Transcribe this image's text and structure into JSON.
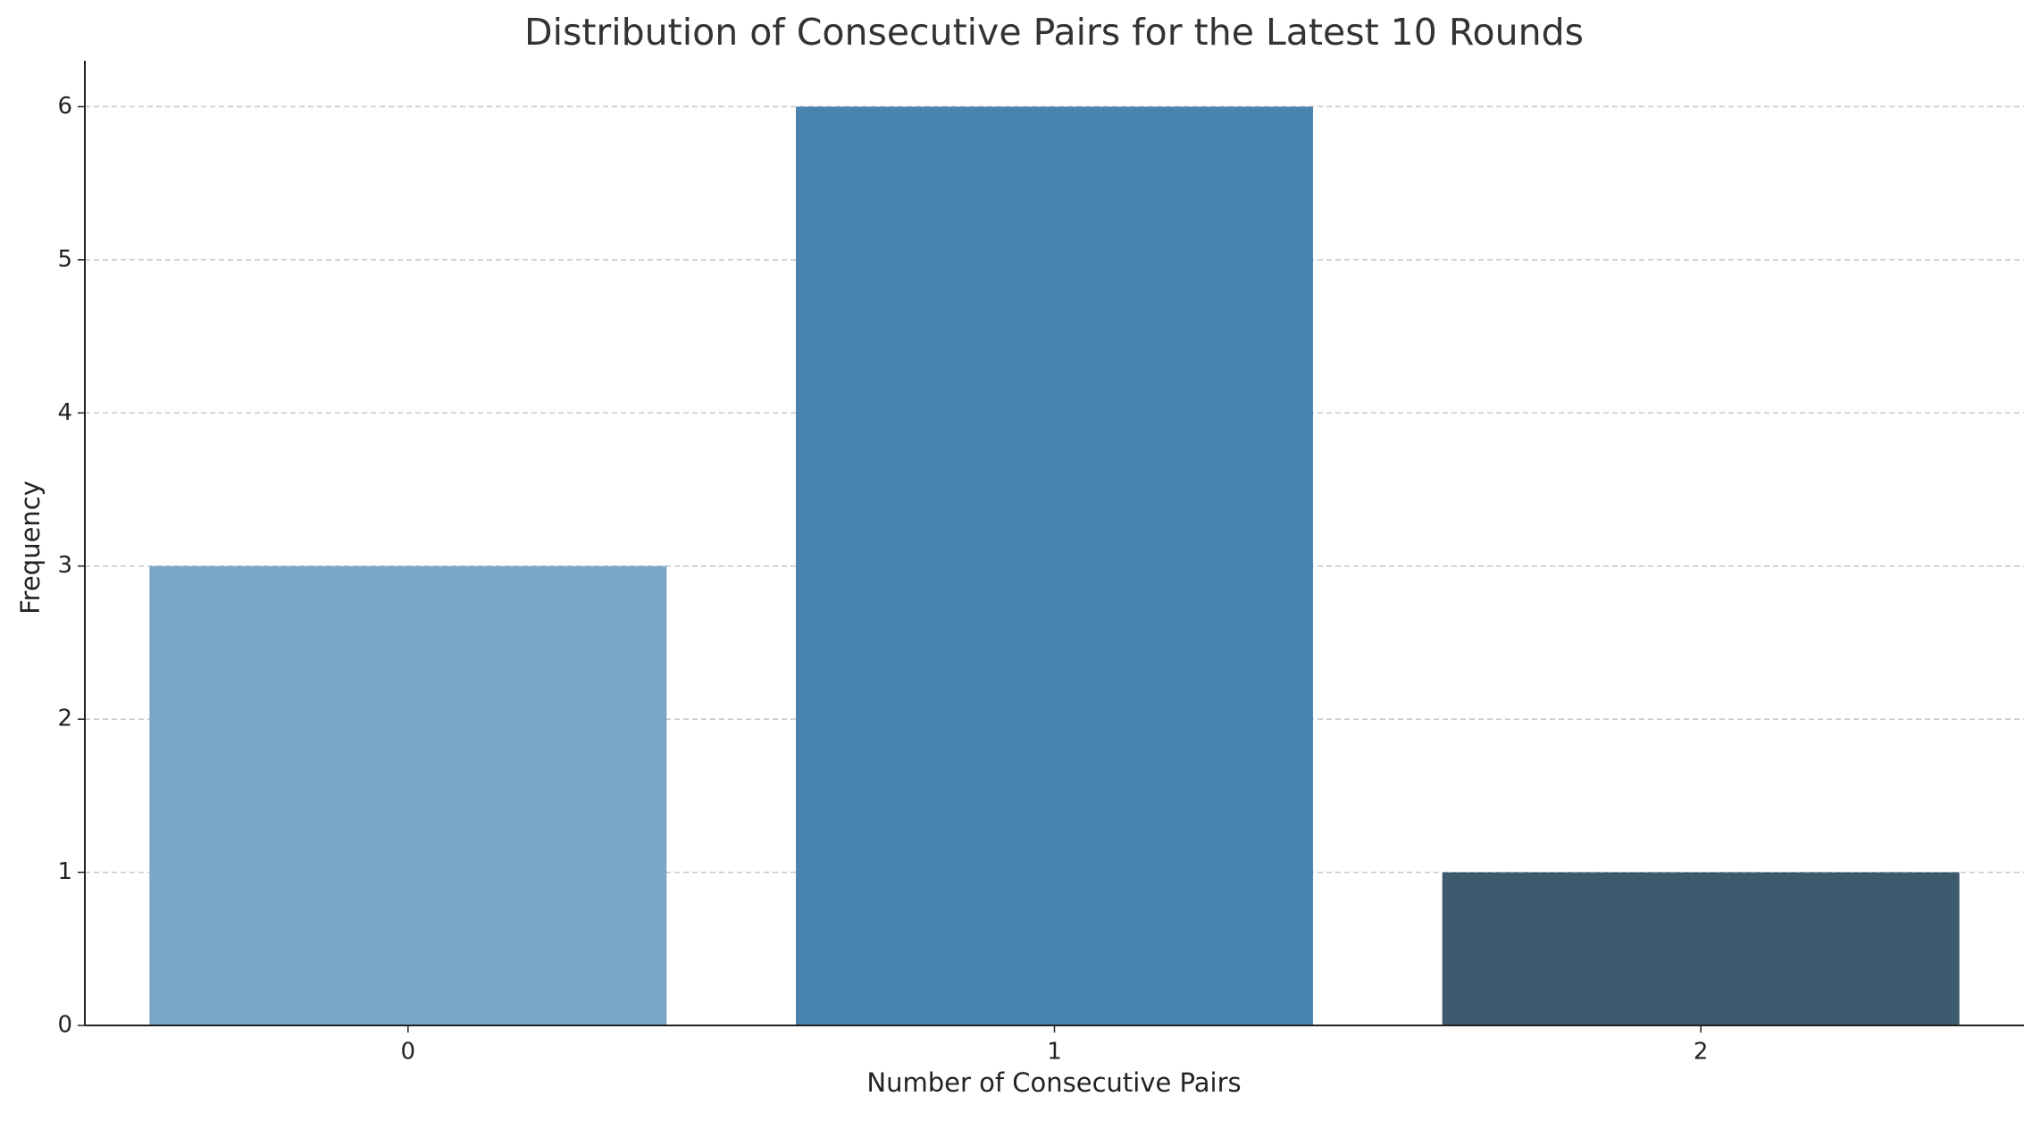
{
  "chart_data": {
    "type": "bar",
    "title": "Distribution of Consecutive Pairs for the Latest 10 Rounds",
    "x_label": "Number of Consecutive Pairs",
    "y_label": "Frequency",
    "categories": [
      "0",
      "1",
      "2"
    ],
    "values": [
      3,
      6,
      1
    ],
    "colors": [
      "#7ba7c7",
      "#4883b0",
      "#3d5a6f"
    ],
    "ylim": [
      0,
      6.3
    ],
    "yticks": [
      0,
      1,
      2,
      3,
      4,
      5,
      6
    ],
    "grid": true
  }
}
